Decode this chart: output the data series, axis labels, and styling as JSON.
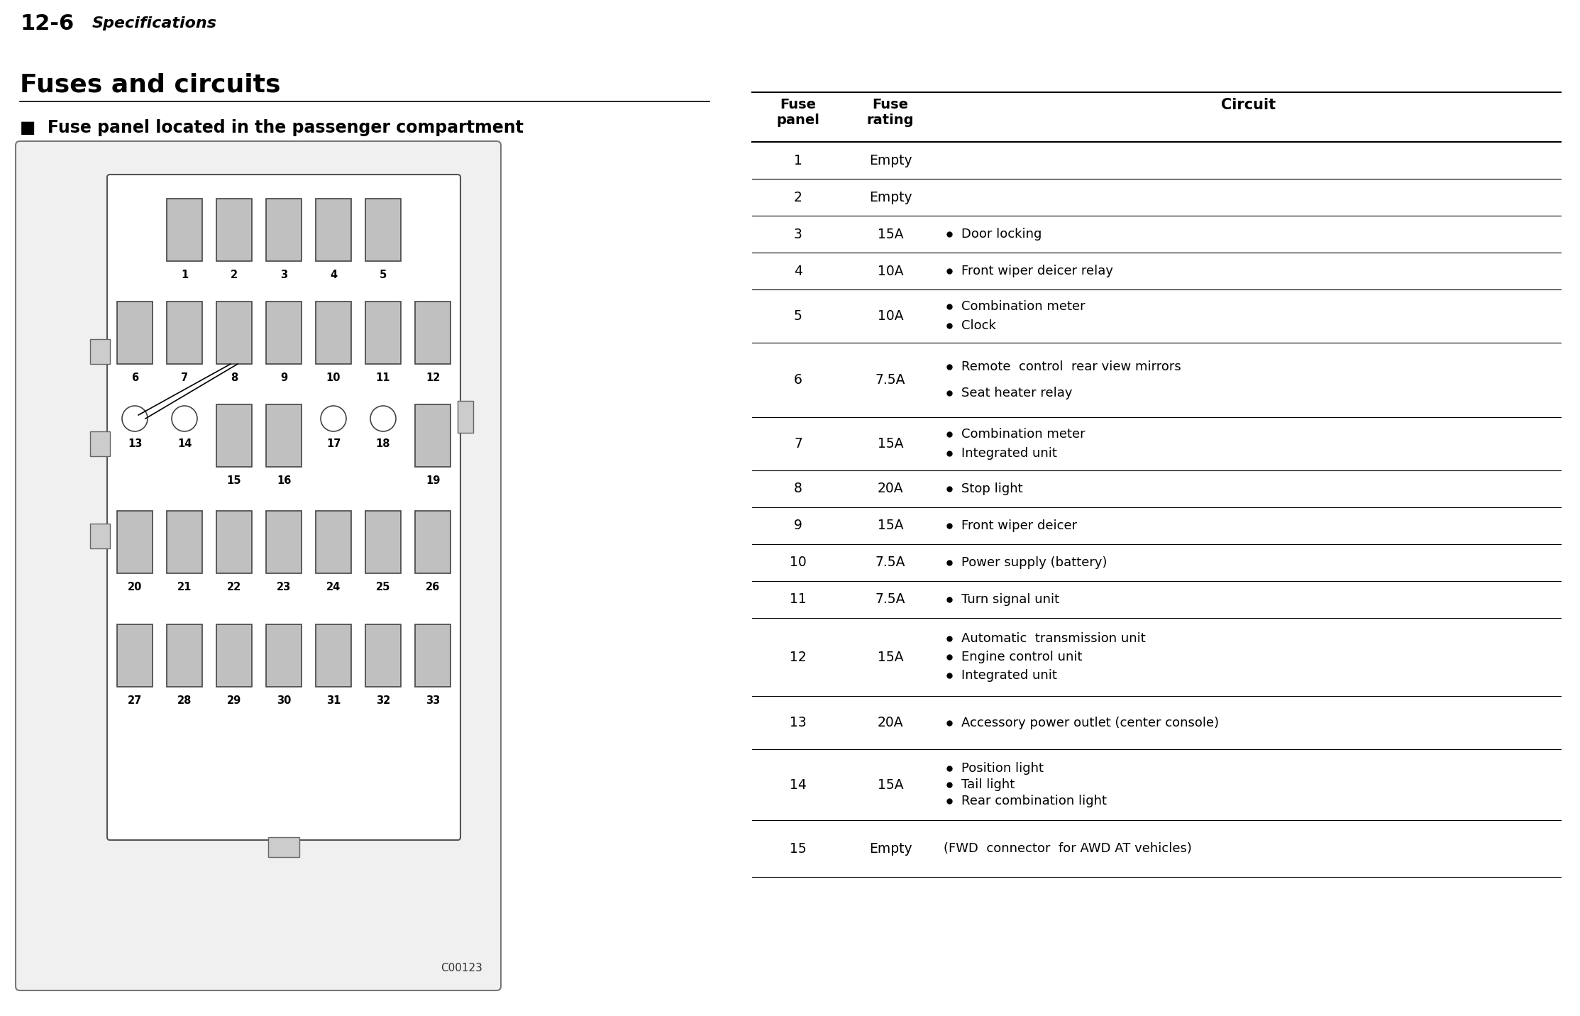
{
  "page_header_num": "12-6",
  "page_header_text": "Specifications",
  "section_title": "Fuses and circuits",
  "subsection_title": "■  Fuse panel located in the passenger compartment",
  "diagram_code": "C00123",
  "bg_color": "#ffffff",
  "header_bg": "#d0d0d0",
  "fuse_fill": "#c0c0c0",
  "fuse_stroke": "#444444",
  "table_data": [
    {
      "num": "1",
      "rating": "Empty",
      "circuits": [],
      "bullet": false
    },
    {
      "num": "2",
      "rating": "Empty",
      "circuits": [],
      "bullet": false
    },
    {
      "num": "3",
      "rating": "15A",
      "circuits": [
        "Door locking"
      ],
      "bullet": true
    },
    {
      "num": "4",
      "rating": "10A",
      "circuits": [
        "Front wiper deicer relay"
      ],
      "bullet": true
    },
    {
      "num": "5",
      "rating": "10A",
      "circuits": [
        "Combination meter",
        "Clock"
      ],
      "bullet": true
    },
    {
      "num": "6",
      "rating": "7.5A",
      "circuits": [
        "Remote  control  rear view mirrors",
        "Seat heater relay"
      ],
      "bullet": true
    },
    {
      "num": "7",
      "rating": "15A",
      "circuits": [
        "Combination meter",
        "Integrated unit"
      ],
      "bullet": true
    },
    {
      "num": "8",
      "rating": "20A",
      "circuits": [
        "Stop light"
      ],
      "bullet": true
    },
    {
      "num": "9",
      "rating": "15A",
      "circuits": [
        "Front wiper deicer"
      ],
      "bullet": true
    },
    {
      "num": "10",
      "rating": "7.5A",
      "circuits": [
        "Power supply (battery)"
      ],
      "bullet": true
    },
    {
      "num": "11",
      "rating": "7.5A",
      "circuits": [
        "Turn signal unit"
      ],
      "bullet": true
    },
    {
      "num": "12",
      "rating": "15A",
      "circuits": [
        "Automatic  transmission unit",
        "Engine control unit",
        "Integrated unit"
      ],
      "bullet": true
    },
    {
      "num": "13",
      "rating": "20A",
      "circuits": [
        "Accessory power outlet (center console)"
      ],
      "bullet": true
    },
    {
      "num": "14",
      "rating": "15A",
      "circuits": [
        "Position light",
        "Tail light",
        "Rear combination light"
      ],
      "bullet": true
    },
    {
      "num": "15",
      "rating": "Empty",
      "circuits": [
        "(FWD  connector  for AWD AT vehicles)"
      ],
      "bullet": false
    }
  ]
}
